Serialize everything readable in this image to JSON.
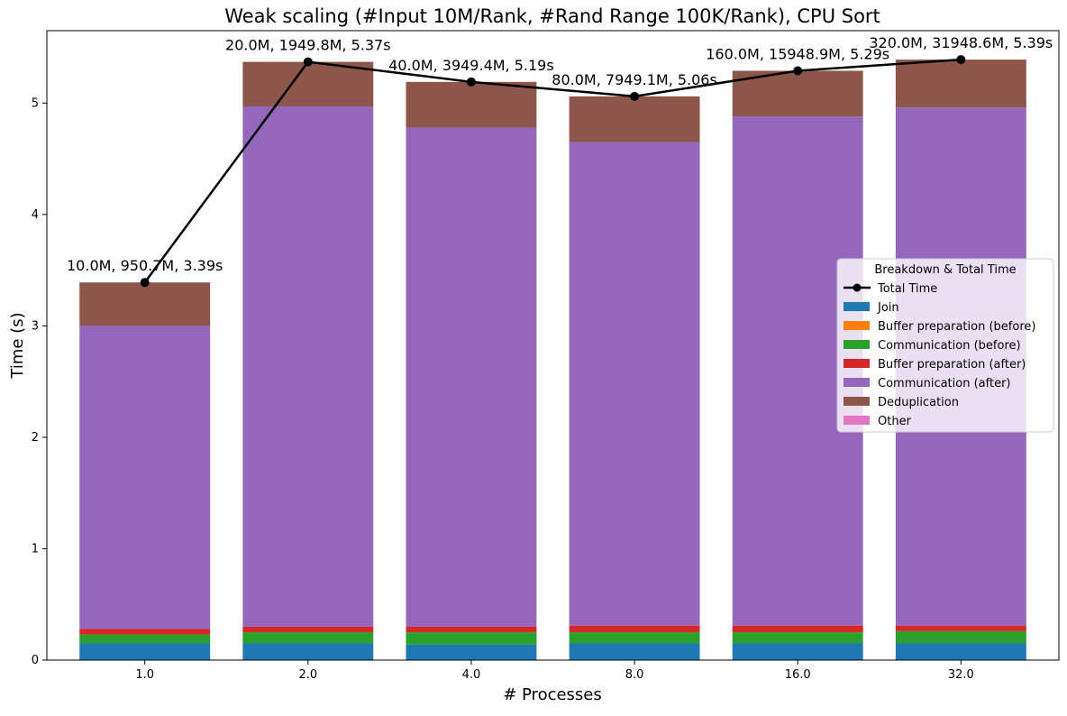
{
  "chart_data": {
    "type": "bar",
    "title": "Weak scaling (#Input 10M/Rank, #Rand Range 100K/Rank), CPU Sort",
    "xlabel": "# Processes",
    "ylabel": "Time (s)",
    "ylim": [
      0,
      5.65
    ],
    "yticks": [
      "0",
      "1",
      "2",
      "3",
      "4",
      "5"
    ],
    "categories": [
      "1.0",
      "2.0",
      "4.0",
      "8.0",
      "16.0",
      "32.0"
    ],
    "legend_title": "Breakdown & Total Time",
    "legend_position": "center-right",
    "grid": false,
    "series": [
      {
        "name": "Join",
        "color": "#1f77b4",
        "values": [
          0.15,
          0.15,
          0.14,
          0.15,
          0.15,
          0.15
        ]
      },
      {
        "name": "Buffer preparation (before)",
        "color": "#ff7f0e",
        "values": [
          0.0,
          0.0,
          0.0,
          0.0,
          0.0,
          0.0
        ]
      },
      {
        "name": "Communication (before)",
        "color": "#2ca02c",
        "values": [
          0.08,
          0.1,
          0.11,
          0.1,
          0.1,
          0.11
        ]
      },
      {
        "name": "Buffer preparation (after)",
        "color": "#d62728",
        "values": [
          0.05,
          0.05,
          0.05,
          0.06,
          0.06,
          0.05
        ]
      },
      {
        "name": "Communication (after)",
        "color": "#9467bd",
        "values": [
          2.72,
          4.67,
          4.48,
          4.34,
          4.57,
          4.65
        ]
      },
      {
        "name": "Deduplication",
        "color": "#8c564b",
        "values": [
          0.39,
          0.4,
          0.41,
          0.41,
          0.41,
          0.43
        ]
      },
      {
        "name": "Other",
        "color": "#e377c2",
        "values": [
          0.0,
          0.0,
          0.0,
          0.0,
          0.0,
          0.0
        ]
      }
    ],
    "total_line": {
      "name": "Total Time",
      "color": "#000000",
      "values": [
        3.39,
        5.37,
        5.19,
        5.06,
        5.29,
        5.39
      ]
    },
    "annotations": [
      "10.0M, 950.7M, 3.39s",
      "20.0M, 1949.8M, 5.37s",
      "40.0M, 3949.4M, 5.19s",
      "80.0M, 7949.1M, 5.06s",
      "160.0M, 15948.9M, 5.29s",
      "320.0M, 31948.6M, 5.39s"
    ]
  }
}
